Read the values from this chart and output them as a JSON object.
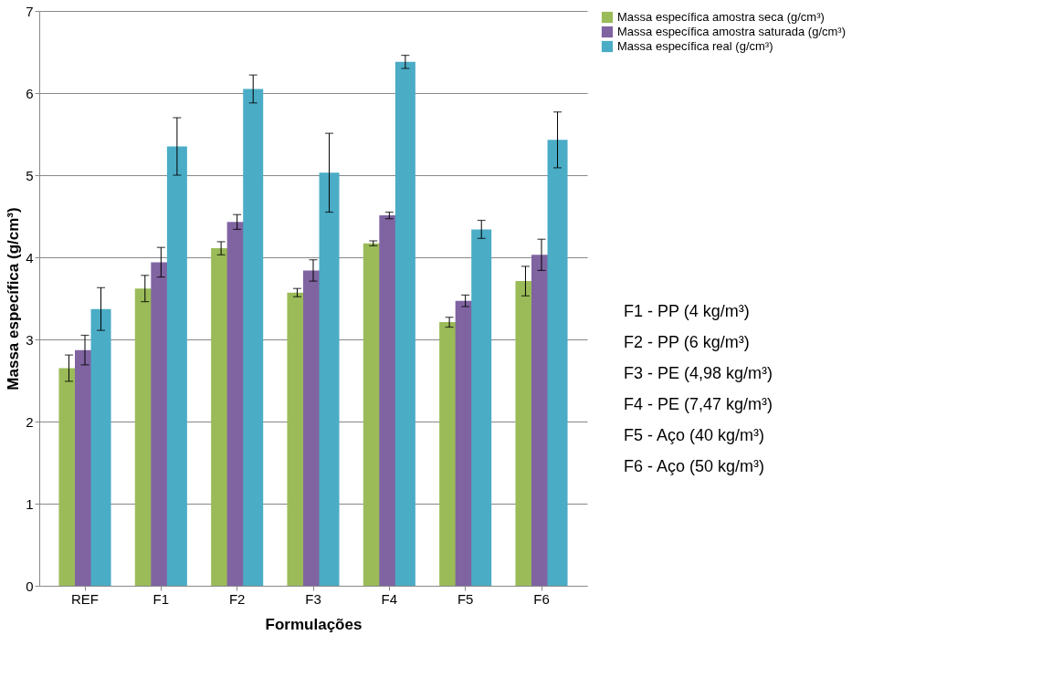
{
  "chart_data": {
    "type": "bar",
    "xlabel": "Formulações",
    "ylabel": "Massa específica (g/cm³)",
    "categories": [
      "REF",
      "F1",
      "F2",
      "F3",
      "F4",
      "F5",
      "F6"
    ],
    "series": [
      {
        "name": "Massa específica amostra seca (g/cm³)",
        "color": "#9bbb59",
        "values": [
          2.65,
          3.62,
          4.11,
          3.57,
          4.17,
          3.21,
          3.71
        ],
        "errors": [
          0.16,
          0.16,
          0.08,
          0.05,
          0.03,
          0.06,
          0.18
        ]
      },
      {
        "name": "Massa específica amostra saturada (g/cm³)",
        "color": "#8064a2",
        "values": [
          2.87,
          3.94,
          4.43,
          3.84,
          4.51,
          3.47,
          4.03
        ],
        "errors": [
          0.18,
          0.18,
          0.09,
          0.13,
          0.04,
          0.07,
          0.19
        ]
      },
      {
        "name": "Massa específica real (g/cm³)",
        "color": "#4bacc6",
        "values": [
          3.37,
          5.35,
          6.05,
          5.03,
          6.38,
          4.34,
          5.43
        ],
        "errors": [
          0.26,
          0.35,
          0.17,
          0.48,
          0.08,
          0.11,
          0.34
        ]
      }
    ],
    "ylim": [
      0,
      7
    ],
    "yticks": [
      0,
      1,
      2,
      3,
      4,
      5,
      6,
      7
    ],
    "grid": "y",
    "legend": "right",
    "annotations": [
      "F1 - PP (4 kg/m³)",
      "F2 - PP (6 kg/m³)",
      "F3 - PE (4,98 kg/m³)",
      "F4 - PE (7,47 kg/m³)",
      "F5 - Aço (40 kg/m³)",
      "F6 - Aço (50 kg/m³)"
    ]
  }
}
